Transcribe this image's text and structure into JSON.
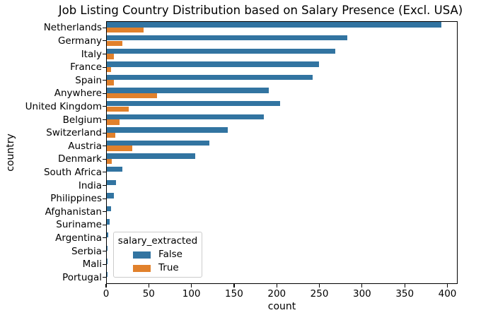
{
  "chart_data": {
    "type": "bar",
    "orientation": "horizontal",
    "title": "Job Listing Country Distribution based on Salary Presence (Excl. USA)",
    "xlabel": "count",
    "ylabel": "country",
    "grid": false,
    "categories": [
      "Netherlands",
      "Germany",
      "Italy",
      "France",
      "Spain",
      "Anywhere",
      "United Kingdom",
      "Belgium",
      "Switzerland",
      "Austria",
      "Denmark",
      "South Africa",
      "India",
      "Philippines",
      "Afghanistan",
      "Suriname",
      "Argentina",
      "Serbia",
      "Mali",
      "Portugal"
    ],
    "series": [
      {
        "name": "False",
        "color": "#3274a1",
        "values": [
          392,
          282,
          268,
          249,
          241,
          190,
          203,
          184,
          142,
          120,
          104,
          18,
          11,
          8,
          5,
          3,
          2,
          1,
          1,
          1
        ]
      },
      {
        "name": "True",
        "color": "#e1812c",
        "values": [
          43,
          18,
          8,
          5,
          8,
          59,
          26,
          15,
          10,
          30,
          6,
          0,
          0,
          0,
          0,
          0,
          0,
          0,
          0,
          0
        ]
      }
    ],
    "x_ticks": [
      0,
      50,
      100,
      150,
      200,
      250,
      300,
      350,
      400
    ],
    "xlim": [
      0,
      412
    ],
    "legend": {
      "title": "salary_extracted",
      "entries": [
        "False",
        "True"
      ],
      "position": "lower-left"
    }
  }
}
